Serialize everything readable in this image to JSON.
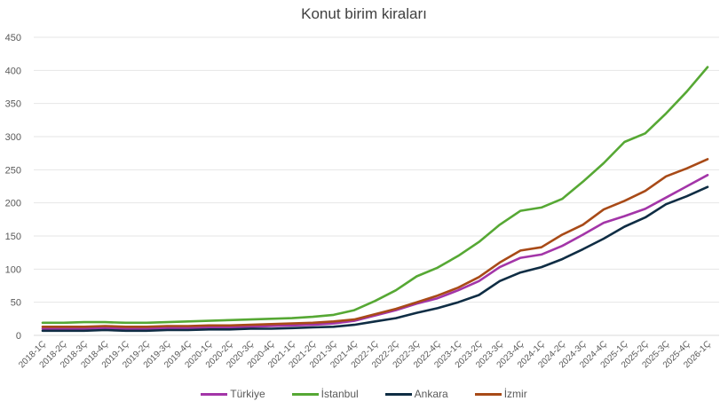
{
  "chart_data": {
    "type": "line",
    "title": "Konut birim kiraları",
    "xlabel": "",
    "ylabel": "",
    "ylim": [
      0,
      450
    ],
    "yticks": [
      0,
      50,
      100,
      150,
      200,
      250,
      300,
      350,
      400,
      450
    ],
    "grid": true,
    "legend_position": "bottom",
    "categories": [
      "2018-1Ç",
      "2018-2Ç",
      "2018-3Ç",
      "2018-4Ç",
      "2019-1Ç",
      "2019-2Ç",
      "2019-3Ç",
      "2019-4Ç",
      "2020-1Ç",
      "2020-2Ç",
      "2020-3Ç",
      "2020-4Ç",
      "2021-1Ç",
      "2021-2Ç",
      "2021-3Ç",
      "2021-4Ç",
      "2022-1Ç",
      "2022-2Ç",
      "2022-3Ç",
      "2022-4Ç",
      "2023-1Ç",
      "2023-2Ç",
      "2023-3Ç",
      "2023-4Ç",
      "2024-1Ç",
      "2024-2Ç",
      "2024-3Ç",
      "2024-4Ç",
      "2025-1Ç",
      "2025-2Ç",
      "2025-3Ç",
      "2025-4Ç",
      "2026-1Ç"
    ],
    "series": [
      {
        "name": "Türkiye",
        "color": "#a335a8",
        "values": [
          10,
          10,
          10,
          11,
          10,
          10,
          11,
          11,
          12,
          12,
          13,
          14,
          15,
          16,
          18,
          22,
          30,
          38,
          48,
          56,
          68,
          82,
          103,
          117,
          122,
          135,
          152,
          170,
          180,
          191,
          208,
          225,
          242
        ]
      },
      {
        "name": "İstanbul",
        "color": "#56a834",
        "values": [
          19,
          19,
          20,
          20,
          19,
          19,
          20,
          21,
          22,
          23,
          24,
          25,
          26,
          28,
          31,
          38,
          52,
          68,
          89,
          102,
          120,
          141,
          167,
          188,
          193,
          206,
          232,
          260,
          292,
          305,
          335,
          368,
          405
        ]
      },
      {
        "name": "Ankara",
        "color": "#0f2d44",
        "values": [
          7,
          7,
          7,
          8,
          7,
          7,
          8,
          8,
          9,
          9,
          10,
          10,
          11,
          12,
          13,
          16,
          21,
          26,
          34,
          41,
          50,
          61,
          82,
          95,
          103,
          115,
          130,
          146,
          164,
          178,
          198,
          210,
          224
        ]
      },
      {
        "name": "İzmir",
        "color": "#a84a17",
        "values": [
          13,
          13,
          13,
          14,
          13,
          13,
          14,
          14,
          15,
          15,
          16,
          17,
          18,
          19,
          21,
          24,
          32,
          40,
          50,
          60,
          72,
          88,
          110,
          128,
          133,
          152,
          167,
          190,
          203,
          218,
          240,
          252,
          266
        ]
      }
    ]
  }
}
